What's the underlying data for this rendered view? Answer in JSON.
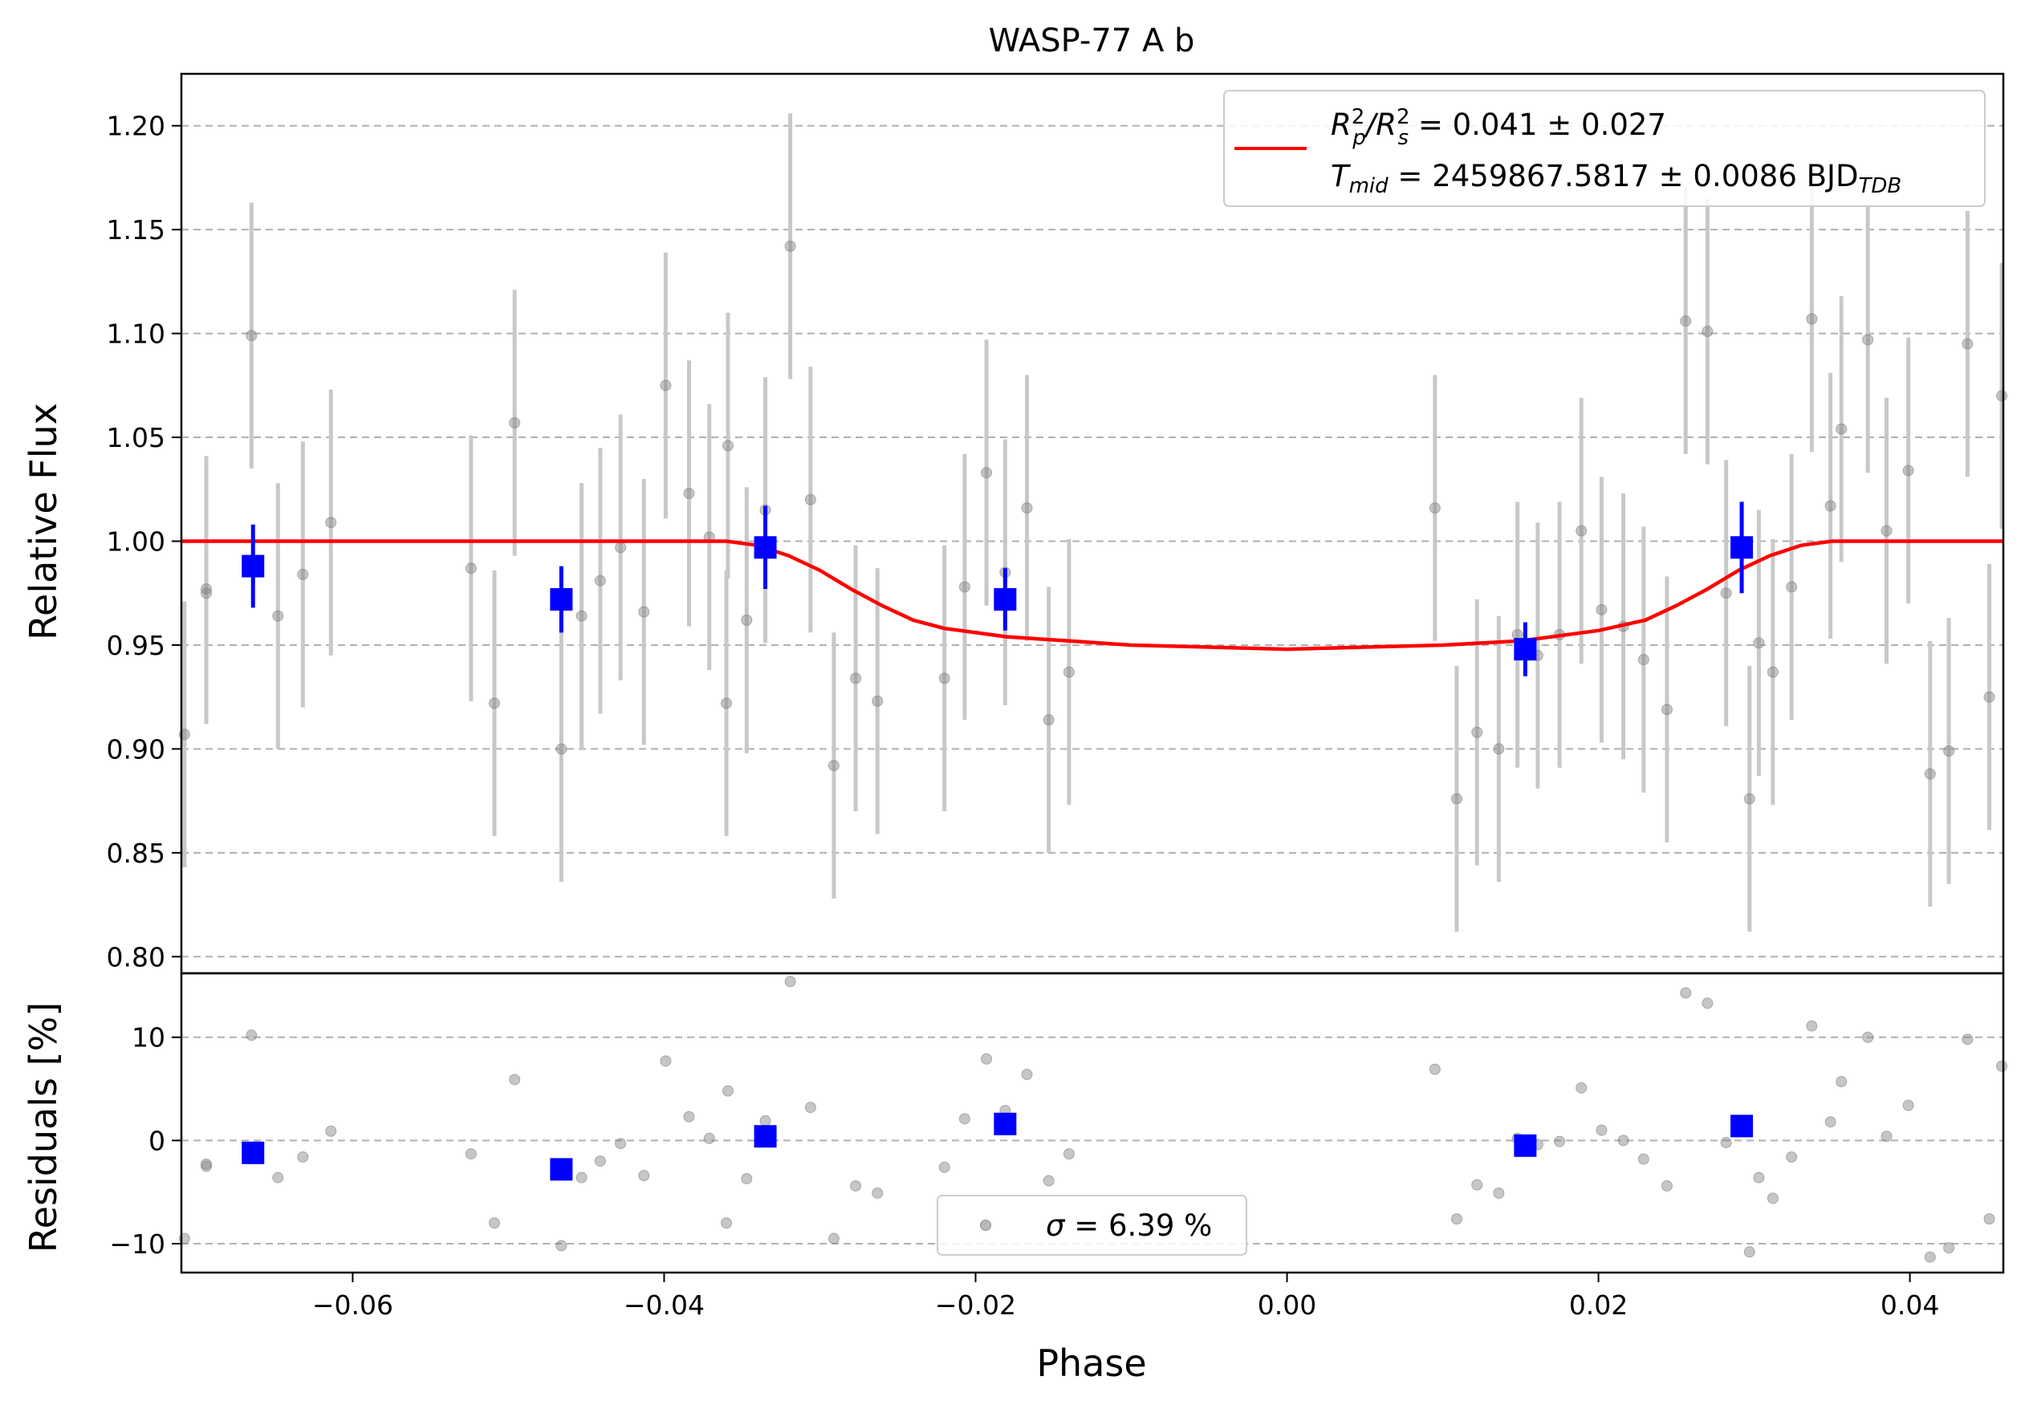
{
  "title": "WASP-77 A b",
  "colors": {
    "raw_points": "#808080",
    "raw_errorbars": "#c8c8c8",
    "binned": "#0000ff",
    "model": "#ff0000",
    "grid": "#b0b0b0",
    "axes": "#000000"
  },
  "legend_top": {
    "line1_prefix": "R",
    "line1_text": " = 0.041 ± 0.027",
    "line2_prefix": "T",
    "line2_sub": "mid",
    "line2_text": " = 2459867.5817 ± 0.0086 BJD",
    "line2_unit_sub": "TDB"
  },
  "legend_bottom": {
    "text": " = 6.39 %"
  },
  "chart_data": [
    {
      "type": "scatter",
      "panel": "top",
      "title": "WASP-77 A b",
      "xlabel": "",
      "ylabel": "Relative Flux",
      "xlim": [
        -0.071,
        0.046
      ],
      "ylim": [
        0.792,
        1.225
      ],
      "grid": "horizontal dashed",
      "legend_position": "top-right",
      "yticks": [
        "0.80",
        "0.85",
        "0.90",
        "0.95",
        "1.00",
        "1.05",
        "1.10",
        "1.15",
        "1.20"
      ],
      "yticks_values": [
        0.8,
        0.85,
        0.9,
        0.95,
        1.0,
        1.05,
        1.1,
        1.15,
        1.2
      ],
      "series": [
        {
          "kind": "raw",
          "x": [
            -0.0708,
            -0.0694,
            -0.0694,
            -0.0665,
            -0.0648,
            -0.0632,
            -0.0614,
            -0.0524,
            -0.0509,
            -0.0496,
            -0.0466,
            -0.0453,
            -0.0441,
            -0.0428,
            -0.0413,
            -0.0399,
            -0.0384,
            -0.0371,
            -0.036,
            -0.0359,
            -0.0347,
            -0.0335,
            -0.0319,
            -0.0306,
            -0.0291,
            -0.0277,
            -0.0263,
            -0.022,
            -0.0207,
            -0.0193,
            -0.0181,
            -0.0167,
            -0.0153,
            -0.014,
            0.0095,
            0.0109,
            0.0122,
            0.0136,
            0.0148,
            0.0161,
            0.0175,
            0.0189,
            0.0202,
            0.0216,
            0.0229,
            0.0244,
            0.0256,
            0.027,
            0.0282,
            0.0297,
            0.0303,
            0.0312,
            0.0324,
            0.0337,
            0.0349,
            0.0356,
            0.0373,
            0.0385,
            0.0399,
            0.0413,
            0.0425,
            0.0437,
            0.0451,
            0.0459
          ],
          "y": [
            0.907,
            0.977,
            0.975,
            1.099,
            0.964,
            0.984,
            1.009,
            0.987,
            0.922,
            1.057,
            0.9,
            0.964,
            0.981,
            0.997,
            0.966,
            1.075,
            1.023,
            1.002,
            0.922,
            1.046,
            0.962,
            1.015,
            1.142,
            1.02,
            0.892,
            0.934,
            0.923,
            0.934,
            0.978,
            1.033,
            0.985,
            1.016,
            0.914,
            0.937,
            1.016,
            0.876,
            0.908,
            0.9,
            0.955,
            0.945,
            0.955,
            1.005,
            0.967,
            0.959,
            0.943,
            0.919,
            1.106,
            1.101,
            0.975,
            0.876,
            0.951,
            0.937,
            0.978,
            1.107,
            1.017,
            1.054,
            1.097,
            1.005,
            1.034,
            0.888,
            0.899,
            1.095,
            0.925,
            1.07
          ],
          "yerr": [
            0.064,
            0.064,
            0.063,
            0.064,
            0.064,
            0.064,
            0.064,
            0.064,
            0.064,
            0.064,
            0.064,
            0.064,
            0.064,
            0.064,
            0.064,
            0.064,
            0.064,
            0.064,
            0.064,
            0.064,
            0.064,
            0.064,
            0.064,
            0.064,
            0.064,
            0.064,
            0.064,
            0.064,
            0.064,
            0.064,
            0.064,
            0.064,
            0.064,
            0.064,
            0.064,
            0.064,
            0.064,
            0.064,
            0.064,
            0.064,
            0.064,
            0.064,
            0.064,
            0.064,
            0.064,
            0.064,
            0.064,
            0.064,
            0.064,
            0.064,
            0.064,
            0.064,
            0.064,
            0.064,
            0.064,
            0.064,
            0.064,
            0.064,
            0.064,
            0.064,
            0.064,
            0.064,
            0.064,
            0.064
          ]
        },
        {
          "kind": "binned",
          "x": [
            -0.0664,
            -0.0466,
            -0.0335,
            -0.0181,
            0.0153,
            0.0292
          ],
          "y": [
            0.988,
            0.972,
            0.997,
            0.972,
            0.948,
            0.997
          ],
          "yerr": [
            0.02,
            0.016,
            0.02,
            0.015,
            0.013,
            0.022
          ]
        },
        {
          "kind": "model",
          "x": [
            -0.071,
            -0.036,
            -0.034,
            -0.032,
            -0.03,
            -0.028,
            -0.026,
            -0.024,
            -0.022,
            -0.02,
            -0.018,
            -0.016,
            -0.014,
            -0.01,
            -0.005,
            0.0,
            0.005,
            0.01,
            0.015,
            0.02,
            0.023,
            0.025,
            0.027,
            0.029,
            0.031,
            0.033,
            0.035,
            0.046
          ],
          "y": [
            1.0,
            1.0,
            0.998,
            0.993,
            0.986,
            0.977,
            0.969,
            0.962,
            0.958,
            0.956,
            0.954,
            0.953,
            0.952,
            0.95,
            0.949,
            0.948,
            0.949,
            0.95,
            0.952,
            0.957,
            0.962,
            0.969,
            0.977,
            0.986,
            0.993,
            0.998,
            1.0,
            1.0
          ]
        }
      ]
    },
    {
      "type": "scatter",
      "panel": "bottom",
      "xlabel": "Phase",
      "ylabel": "Residuals [%]",
      "xlim": [
        -0.071,
        0.046
      ],
      "ylim": [
        -12.8,
        16.2
      ],
      "grid": "horizontal dashed",
      "legend_position": "bottom-center",
      "xticks": [
        "−0.06",
        "−0.04",
        "−0.02",
        "0.00",
        "0.02",
        "0.04"
      ],
      "xticks_values": [
        -0.06,
        -0.04,
        -0.02,
        0.0,
        0.02,
        0.04
      ],
      "yticks": [
        "−10",
        "0",
        "10"
      ],
      "yticks_values": [
        -10,
        0,
        10
      ],
      "series": [
        {
          "kind": "raw",
          "x": [
            -0.0708,
            -0.0694,
            -0.0694,
            -0.0665,
            -0.0648,
            -0.0632,
            -0.0614,
            -0.0524,
            -0.0509,
            -0.0496,
            -0.0466,
            -0.0453,
            -0.0441,
            -0.0428,
            -0.0413,
            -0.0399,
            -0.0384,
            -0.0371,
            -0.036,
            -0.0359,
            -0.0347,
            -0.0335,
            -0.0319,
            -0.0306,
            -0.0291,
            -0.0277,
            -0.0263,
            -0.022,
            -0.0207,
            -0.0193,
            -0.0181,
            -0.0167,
            -0.0153,
            -0.014,
            0.0095,
            0.0109,
            0.0122,
            0.0136,
            0.0148,
            0.0161,
            0.0175,
            0.0189,
            0.0202,
            0.0216,
            0.0229,
            0.0244,
            0.0256,
            0.027,
            0.0282,
            0.0297,
            0.0303,
            0.0312,
            0.0324,
            0.0337,
            0.0349,
            0.0356,
            0.0373,
            0.0385,
            0.0399,
            0.0413,
            0.0425,
            0.0437,
            0.0451,
            0.0459
          ],
          "y": [
            -9.5,
            -2.3,
            -2.5,
            10.2,
            -3.6,
            -1.6,
            0.9,
            -1.3,
            -8.0,
            5.9,
            -10.2,
            -3.6,
            -2.0,
            -0.3,
            -3.4,
            7.7,
            2.3,
            0.2,
            -8.0,
            4.8,
            -3.7,
            1.9,
            15.4,
            3.2,
            -9.5,
            -4.4,
            -5.1,
            -2.6,
            2.1,
            7.9,
            2.9,
            6.4,
            -3.9,
            -1.3,
            6.9,
            -7.6,
            -4.3,
            -5.1,
            0.2,
            -0.4,
            -0.1,
            5.1,
            1.0,
            0.0,
            -1.8,
            -4.4,
            14.3,
            13.3,
            -0.2,
            -10.8,
            -3.6,
            -5.6,
            -1.6,
            11.1,
            1.8,
            5.7,
            10.0,
            0.4,
            3.4,
            -11.3,
            -10.4,
            9.8,
            -7.6,
            7.2
          ]
        },
        {
          "kind": "binned",
          "x": [
            -0.0664,
            -0.0466,
            -0.0335,
            -0.0181,
            0.0153,
            0.0292
          ],
          "y": [
            -1.2,
            -2.8,
            0.4,
            1.6,
            -0.5,
            1.4
          ]
        }
      ]
    }
  ]
}
